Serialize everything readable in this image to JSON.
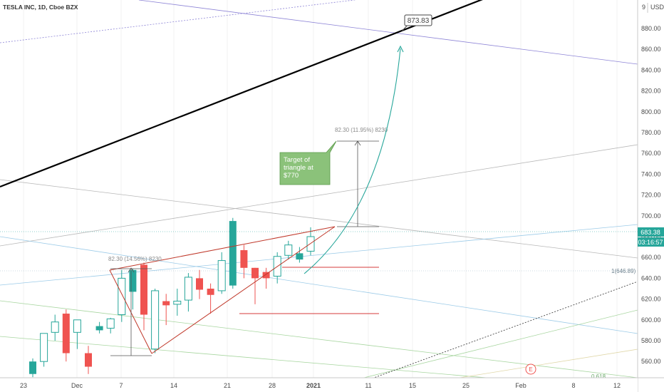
{
  "header": {
    "symbol_title": "TESLA INC, 1D, Cboe BZX"
  },
  "price_axis": {
    "currency_label": "USD",
    "ticks": [
      "880.00",
      "860.00",
      "840.00",
      "820.00",
      "800.00",
      "780.00",
      "760.00",
      "740.00",
      "720.00",
      "700.00",
      "680.00",
      "660.00",
      "640.00",
      "620.00",
      "600.00",
      "580.00",
      "560.00"
    ],
    "top_partial_label": "9",
    "last_price_label": "683.38",
    "countdown_label": "03:16:57"
  },
  "time_axis": {
    "labels": [
      "23",
      "Dec",
      "7",
      "14",
      "21",
      "28",
      "2021",
      "11",
      "15",
      "25",
      "Feb",
      "8",
      "12"
    ]
  },
  "annotations": {
    "target_price_label": "873.83",
    "callout_text_lines": [
      "Target of",
      "triangle at",
      "$770"
    ],
    "measure_left_label": "82.30 (14.56%) 8230",
    "measure_right_label": "82.30 (11.95%) 8230",
    "fib_one_label": "1(646.89)",
    "fib_0618_label": "0.618",
    "earnings_marker": "E"
  },
  "colors": {
    "bull": "#26a69a",
    "bear": "#ef5350",
    "trend": "#000000",
    "triangle": "#c0392b",
    "arrow": "#26a69a",
    "callout_fill": "#8bc27a",
    "price_badge": "#26a69a"
  },
  "chart_data": {
    "type": "candlestick",
    "symbol": "TESLA INC",
    "interval": "1D",
    "exchange": "Cboe BZX",
    "y_range": [
      546,
      902
    ],
    "candles": [
      {
        "open": 548,
        "high": 563,
        "low": 545,
        "close": 560
      },
      {
        "open": 560,
        "high": 587,
        "low": 555,
        "close": 587
      },
      {
        "open": 588,
        "high": 605,
        "low": 580,
        "close": 598
      },
      {
        "open": 606,
        "high": 610,
        "low": 560,
        "close": 568
      },
      {
        "open": 588,
        "high": 600,
        "low": 572,
        "close": 600
      },
      {
        "open": 568,
        "high": 575,
        "low": 548,
        "close": 555
      },
      {
        "open": 590,
        "high": 598,
        "low": 587,
        "close": 594
      },
      {
        "open": 592,
        "high": 602,
        "low": 587,
        "close": 601
      },
      {
        "open": 605,
        "high": 648,
        "low": 598,
        "close": 640
      },
      {
        "open": 627,
        "high": 649,
        "low": 610,
        "close": 648
      },
      {
        "open": 653,
        "high": 655,
        "low": 590,
        "close": 605
      },
      {
        "open": 572,
        "high": 630,
        "low": 568,
        "close": 628
      },
      {
        "open": 618,
        "high": 625,
        "low": 595,
        "close": 614
      },
      {
        "open": 615,
        "high": 630,
        "low": 604,
        "close": 618
      },
      {
        "open": 619,
        "high": 645,
        "low": 608,
        "close": 641
      },
      {
        "open": 640,
        "high": 648,
        "low": 620,
        "close": 629
      },
      {
        "open": 630,
        "high": 635,
        "low": 606,
        "close": 624
      },
      {
        "open": 628,
        "high": 665,
        "low": 625,
        "close": 657
      },
      {
        "open": 633,
        "high": 698,
        "low": 630,
        "close": 695
      },
      {
        "open": 667,
        "high": 672,
        "low": 640,
        "close": 650
      },
      {
        "open": 650,
        "high": 650,
        "low": 615,
        "close": 640
      },
      {
        "open": 646,
        "high": 650,
        "low": 630,
        "close": 640
      },
      {
        "open": 642,
        "high": 665,
        "low": 635,
        "close": 661
      },
      {
        "open": 662,
        "high": 676,
        "low": 658,
        "close": 672
      },
      {
        "open": 658,
        "high": 670,
        "low": 655,
        "close": 664
      },
      {
        "open": 666,
        "high": 689,
        "low": 662,
        "close": 680
      }
    ]
  }
}
